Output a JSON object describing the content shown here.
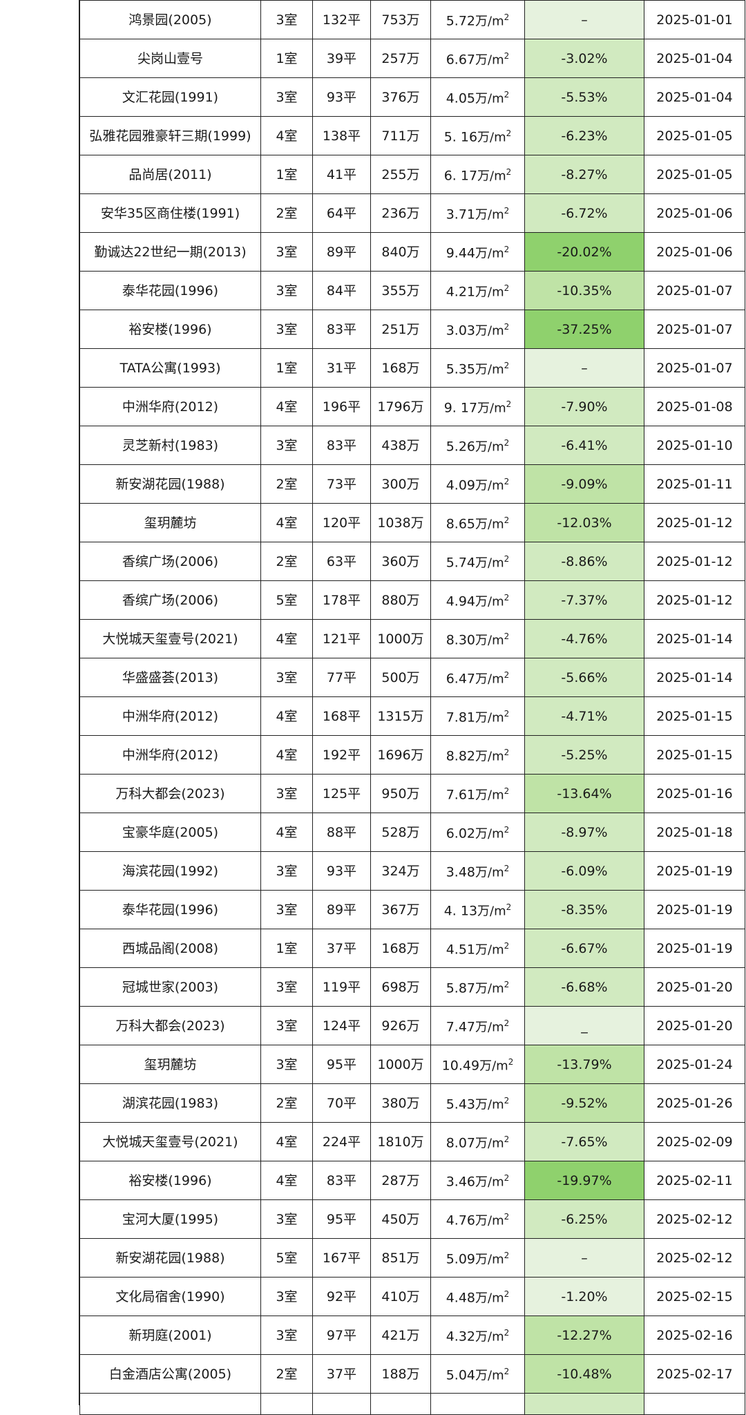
{
  "colors": {
    "border": "#222222",
    "change_light": "#e6f2de",
    "change_mid": "#cbe6b6",
    "change_strong": "#8fd16d"
  },
  "unit_suffix": "万/m",
  "unit_exp": "2",
  "rows": [
    {
      "name": "鸿景园(2005)",
      "rooms": "3室",
      "area": "132平",
      "price": "753万",
      "unit": "5.72",
      "change": "–",
      "date": "2025-01-01",
      "level": 0
    },
    {
      "name": "尖岗山壹号",
      "rooms": "1室",
      "area": "39平",
      "price": "257万",
      "unit": "6.67",
      "change": "-3.02%",
      "date": "2025-01-04",
      "level": 1
    },
    {
      "name": "文汇花园(1991)",
      "rooms": "3室",
      "area": "93平",
      "price": "376万",
      "unit": "4.05",
      "change": "-5.53%",
      "date": "2025-01-04",
      "level": 1
    },
    {
      "name": "弘雅花园雅豪轩三期(1999)",
      "rooms": "4室",
      "area": "138平",
      "price": "711万",
      "unit": "5. 16",
      "change": "-6.23%",
      "date": "2025-01-05",
      "level": 1
    },
    {
      "name": "品尚居(2011)",
      "rooms": "1室",
      "area": "41平",
      "price": "255万",
      "unit": "6. 17",
      "change": "-8.27%",
      "date": "2025-01-05",
      "level": 1
    },
    {
      "name": "安华35区商住楼(1991)",
      "rooms": "2室",
      "area": "64平",
      "price": "236万",
      "unit": "3.71",
      "change": "-6.72%",
      "date": "2025-01-06",
      "level": 1
    },
    {
      "name": "勤诚达22世纪一期(2013)",
      "rooms": "3室",
      "area": "89平",
      "price": "840万",
      "unit": "9.44",
      "change": "-20.02%",
      "date": "2025-01-06",
      "level": 3
    },
    {
      "name": "泰华花园(1996)",
      "rooms": "3室",
      "area": "84平",
      "price": "355万",
      "unit": "4.21",
      "change": "-10.35%",
      "date": "2025-01-07",
      "level": 2
    },
    {
      "name": "裕安楼(1996)",
      "rooms": "3室",
      "area": "83平",
      "price": "251万",
      "unit": "3.03",
      "change": "-37.25%",
      "date": "2025-01-07",
      "level": 3
    },
    {
      "name": "TATA公寓(1993)",
      "rooms": "1室",
      "area": "31平",
      "price": "168万",
      "unit": "5.35",
      "change": "–",
      "date": "2025-01-07",
      "level": 0
    },
    {
      "name": "中洲华府(2012)",
      "rooms": "4室",
      "area": "196平",
      "price": "1796万",
      "unit": "9. 17",
      "change": "-7.90%",
      "date": "2025-01-08",
      "level": 1
    },
    {
      "name": "灵芝新村(1983)",
      "rooms": "3室",
      "area": "83平",
      "price": "438万",
      "unit": "5.26",
      "change": "-6.41%",
      "date": "2025-01-10",
      "level": 1
    },
    {
      "name": "新安湖花园(1988)",
      "rooms": "2室",
      "area": "73平",
      "price": "300万",
      "unit": "4.09",
      "change": "-9.09%",
      "date": "2025-01-11",
      "level": 2
    },
    {
      "name": "玺玥麓坊",
      "rooms": "4室",
      "area": "120平",
      "price": "1038万",
      "unit": "8.65",
      "change": "-12.03%",
      "date": "2025-01-12",
      "level": 2
    },
    {
      "name": "香缤广场(2006)",
      "rooms": "2室",
      "area": "63平",
      "price": "360万",
      "unit": "5.74",
      "change": "-8.86%",
      "date": "2025-01-12",
      "level": 1
    },
    {
      "name": "香缤广场(2006)",
      "rooms": "5室",
      "area": "178平",
      "price": "880万",
      "unit": "4.94",
      "change": "-7.37%",
      "date": "2025-01-12",
      "level": 1
    },
    {
      "name": "大悦城天玺壹号(2021)",
      "rooms": "4室",
      "area": "121平",
      "price": "1000万",
      "unit": "8.30",
      "change": "-4.76%",
      "date": "2025-01-14",
      "level": 1
    },
    {
      "name": "华盛盛荟(2013)",
      "rooms": "3室",
      "area": "77平",
      "price": "500万",
      "unit": "6.47",
      "change": "-5.66%",
      "date": "2025-01-14",
      "level": 1
    },
    {
      "name": "中洲华府(2012)",
      "rooms": "4室",
      "area": "168平",
      "price": "1315万",
      "unit": "7.81",
      "change": "-4.71%",
      "date": "2025-01-15",
      "level": 1
    },
    {
      "name": "中洲华府(2012)",
      "rooms": "4室",
      "area": "192平",
      "price": "1696万",
      "unit": "8.82",
      "change": "-5.25%",
      "date": "2025-01-15",
      "level": 1
    },
    {
      "name": "万科大都会(2023)",
      "rooms": "3室",
      "area": "125平",
      "price": "950万",
      "unit": "7.61",
      "change": "-13.64%",
      "date": "2025-01-16",
      "level": 2
    },
    {
      "name": "宝豪华庭(2005)",
      "rooms": "4室",
      "area": "88平",
      "price": "528万",
      "unit": "6.02",
      "change": "-8.97%",
      "date": "2025-01-18",
      "level": 1
    },
    {
      "name": "海滨花园(1992)",
      "rooms": "3室",
      "area": "93平",
      "price": "324万",
      "unit": "3.48",
      "change": "-6.09%",
      "date": "2025-01-19",
      "level": 1
    },
    {
      "name": "泰华花园(1996)",
      "rooms": "3室",
      "area": "89平",
      "price": "367万",
      "unit": "4. 13",
      "change": "-8.35%",
      "date": "2025-01-19",
      "level": 1
    },
    {
      "name": "西城品阁(2008)",
      "rooms": "1室",
      "area": "37平",
      "price": "168万",
      "unit": "4.51",
      "change": "-6.67%",
      "date": "2025-01-19",
      "level": 1
    },
    {
      "name": "冠城世家(2003)",
      "rooms": "3室",
      "area": "119平",
      "price": "698万",
      "unit": "5.87",
      "change": "-6.68%",
      "date": "2025-01-20",
      "level": 1
    },
    {
      "name": "万科大都会(2023)",
      "rooms": "3室",
      "area": "124平",
      "price": "926万",
      "unit": "7.47",
      "change": "_",
      "date": "2025-01-20",
      "level": 0
    },
    {
      "name": "玺玥麓坊",
      "rooms": "3室",
      "area": "95平",
      "price": "1000万",
      "unit": "10.49",
      "change": "-13.79%",
      "date": "2025-01-24",
      "level": 2
    },
    {
      "name": "湖滨花园(1983)",
      "rooms": "2室",
      "area": "70平",
      "price": "380万",
      "unit": "5.43",
      "change": "-9.52%",
      "date": "2025-01-26",
      "level": 2
    },
    {
      "name": "大悦城天玺壹号(2021)",
      "rooms": "4室",
      "area": "224平",
      "price": "1810万",
      "unit": "8.07",
      "change": "-7.65%",
      "date": "2025-02-09",
      "level": 1
    },
    {
      "name": "裕安楼(1996)",
      "rooms": "4室",
      "area": "83平",
      "price": "287万",
      "unit": "3.46",
      "change": "-19.97%",
      "date": "2025-02-11",
      "level": 3
    },
    {
      "name": "宝河大厦(1995)",
      "rooms": "3室",
      "area": "95平",
      "price": "450万",
      "unit": "4.76",
      "change": "-6.25%",
      "date": "2025-02-12",
      "level": 1
    },
    {
      "name": "新安湖花园(1988)",
      "rooms": "5室",
      "area": "167平",
      "price": "851万",
      "unit": "5.09",
      "change": "–",
      "date": "2025-02-12",
      "level": 0
    },
    {
      "name": "文化局宿舍(1990)",
      "rooms": "3室",
      "area": "92平",
      "price": "410万",
      "unit": "4.48",
      "change": "-1.20%",
      "date": "2025-02-15",
      "level": 0
    },
    {
      "name": "新玥庭(2001)",
      "rooms": "3室",
      "area": "97平",
      "price": "421万",
      "unit": "4.32",
      "change": "-12.27%",
      "date": "2025-02-16",
      "level": 2
    },
    {
      "name": "白金酒店公寓(2005)",
      "rooms": "2室",
      "area": "37平",
      "price": "188万",
      "unit": "5.04",
      "change": "-10.48%",
      "date": "2025-02-17",
      "level": 2
    }
  ]
}
